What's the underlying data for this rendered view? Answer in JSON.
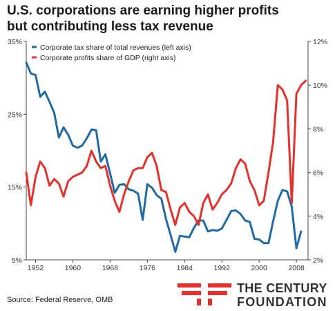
{
  "title": "U.S. corporations are earning higher profits\nbut contributing less tax revenue",
  "source": "Source: Federal Reserve, OMB",
  "logo": {
    "line1": "THE CENTURY",
    "line2": "FOUNDATION",
    "accent_color": "#e8302b"
  },
  "chart_data": {
    "type": "line",
    "x_ticks": [
      "1952",
      "1960",
      "1968",
      "1976",
      "1984",
      "1992",
      "2000",
      "2008"
    ],
    "left_axis": {
      "range": [
        5,
        35
      ],
      "ticks": [
        "35%",
        "25%",
        "15%",
        "5%"
      ]
    },
    "right_axis": {
      "range": [
        2,
        12
      ],
      "ticks": [
        "12%",
        "10%",
        "8%",
        "6%",
        "4%",
        "2%"
      ]
    },
    "legend_position": "top-left",
    "grid": false,
    "series": [
      {
        "name": "Corporate tax share of total revenues (left axis)",
        "axis": "left",
        "color": "#1f6aa5",
        "x": [
          1950,
          1951,
          1952,
          1953,
          1954,
          1955,
          1956,
          1957,
          1958,
          1959,
          1960,
          1961,
          1962,
          1963,
          1964,
          1965,
          1966,
          1967,
          1968,
          1969,
          1970,
          1971,
          1972,
          1973,
          1974,
          1975,
          1976,
          1977,
          1978,
          1979,
          1980,
          1981,
          1982,
          1983,
          1984,
          1985,
          1986,
          1987,
          1988,
          1989,
          1990,
          1991,
          1992,
          1993,
          1994,
          1995,
          1996,
          1997,
          1998,
          1999,
          2000,
          2001,
          2002,
          2003,
          2004,
          2005,
          2006,
          2007,
          2008,
          2009,
          2010
        ],
        "y": [
          32.1,
          30.6,
          30.4,
          27.4,
          28.1,
          26.7,
          25.2,
          21.8,
          23.2,
          22.2,
          20.7,
          20.4,
          20.7,
          21.7,
          22.9,
          22.8,
          18.5,
          19.5,
          16.9,
          14.2,
          15.3,
          15.4,
          14.7,
          14.5,
          14.1,
          10.5,
          15.4,
          14.9,
          13.9,
          13.4,
          10.6,
          8.4,
          6.1,
          8.3,
          8.2,
          8.1,
          9.4,
          10.4,
          10.4,
          8.9,
          9.1,
          9.0,
          9.3,
          10.5,
          11.7,
          11.8,
          11.3,
          10.4,
          10.2,
          7.9,
          7.8,
          7.3,
          7.3,
          10.3,
          13.1,
          14.6,
          14.4,
          12.3,
          6.6,
          8.9,
          null
        ]
      },
      {
        "name": "Corporate profits share of GDP (right axis)",
        "axis": "right",
        "color": "#e8302b",
        "x": [
          1950,
          1951,
          1952,
          1953,
          1954,
          1955,
          1956,
          1957,
          1958,
          1959,
          1960,
          1961,
          1962,
          1963,
          1964,
          1965,
          1966,
          1967,
          1968,
          1969,
          1970,
          1971,
          1972,
          1973,
          1974,
          1975,
          1976,
          1977,
          1978,
          1979,
          1980,
          1981,
          1982,
          1983,
          1984,
          1985,
          1986,
          1987,
          1988,
          1989,
          1990,
          1991,
          1992,
          1993,
          1994,
          1995,
          1996,
          1997,
          1998,
          1999,
          2000,
          2001,
          2002,
          2003,
          2004,
          2005,
          2006,
          2007,
          2008,
          2009,
          2010
        ],
        "y": [
          6.0,
          4.5,
          5.8,
          6.5,
          6.2,
          5.4,
          5.7,
          5.5,
          4.9,
          5.6,
          5.8,
          5.9,
          6.0,
          6.3,
          7.0,
          6.5,
          6.2,
          6.3,
          5.4,
          4.7,
          4.2,
          5.0,
          5.6,
          6.1,
          6.2,
          6.2,
          6.7,
          6.9,
          6.3,
          5.2,
          5.1,
          4.3,
          3.6,
          4.4,
          4.6,
          4.2,
          4.0,
          3.6,
          4.6,
          5.0,
          4.3,
          4.6,
          5.0,
          5.2,
          5.5,
          6.2,
          6.6,
          6.4,
          5.6,
          5.2,
          4.5,
          4.7,
          6.0,
          7.4,
          10.0,
          9.8,
          9.3,
          4.6,
          9.6,
          10.0,
          10.2
        ]
      }
    ]
  }
}
